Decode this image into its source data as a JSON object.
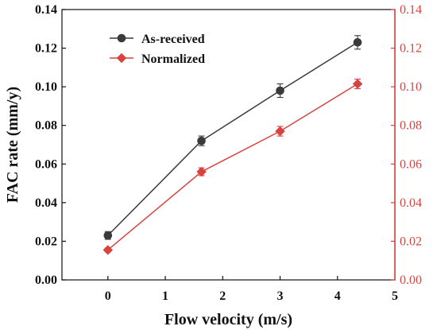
{
  "chart_data": {
    "type": "line",
    "xlabel": "Flow velocity (m/s)",
    "ylabel": "FAC rate (mm/y)",
    "xlim": [
      -0.8,
      5
    ],
    "ylim": [
      0,
      0.14
    ],
    "y2lim": [
      0,
      0.14
    ],
    "xticks": [
      "0",
      "1",
      "2",
      "3",
      "4",
      "5"
    ],
    "yticks": [
      "0.00",
      "0.02",
      "0.04",
      "0.06",
      "0.08",
      "0.10",
      "0.12",
      "0.14"
    ],
    "y2ticks": [
      "0.00",
      "0.02",
      "0.04",
      "0.06",
      "0.08",
      "0.10",
      "0.12",
      "0.14"
    ],
    "legend_position": "top-left",
    "series": [
      {
        "name": "As-received",
        "color": "#3a3a3a",
        "marker": "circle",
        "axis": "left",
        "x": [
          0,
          1.63,
          3.0,
          4.35
        ],
        "y": [
          0.023,
          0.072,
          0.098,
          0.123
        ],
        "err": [
          0.002,
          0.0025,
          0.0035,
          0.0035
        ]
      },
      {
        "name": "Normalized",
        "color": "#d9433f",
        "marker": "diamond",
        "axis": "right",
        "x": [
          0,
          1.63,
          3.0,
          4.35
        ],
        "y": [
          0.0155,
          0.056,
          0.077,
          0.1015
        ],
        "err": [
          0.001,
          0.002,
          0.0025,
          0.0025
        ]
      }
    ]
  }
}
